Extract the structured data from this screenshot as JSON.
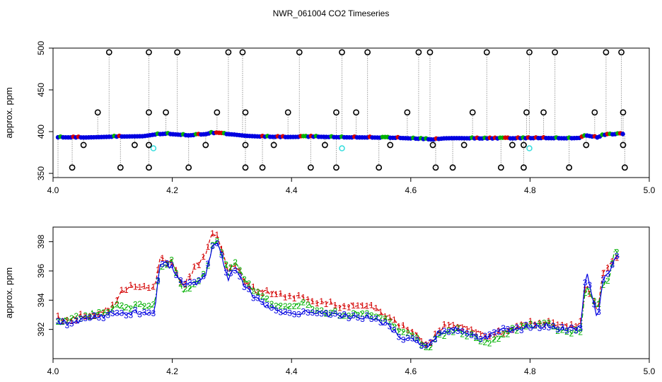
{
  "figure_title": "NWR_061004  CO2 Timeseries",
  "colors": {
    "black": "#000000",
    "red": "#d40000",
    "green": "#00b000",
    "blue": "#0000e0",
    "cyan": "#33dddd",
    "grey": "#9a9a9a"
  },
  "chart_data": [
    {
      "type": "scatter",
      "title": "",
      "ylabel": "approx. ppm",
      "xlabel": "",
      "xlim": [
        4.0,
        5.0
      ],
      "ylim": [
        345,
        500
      ],
      "x_ticks": [
        "4.0",
        "4.2",
        "4.4",
        "4.6",
        "4.8",
        "5.0"
      ],
      "y_ticks": [
        "350",
        "400",
        "450",
        "500"
      ],
      "grid": false,
      "legend": "none",
      "baseline_series": {
        "marker": "blue-filled-circles",
        "points": [
          [
            4.0,
            393.2
          ],
          [
            4.05,
            393.0
          ],
          [
            4.1,
            394.0
          ],
          [
            4.15,
            394.5
          ],
          [
            4.17,
            396.5
          ],
          [
            4.19,
            397.5
          ],
          [
            4.2,
            397.0
          ],
          [
            4.23,
            395.5
          ],
          [
            4.26,
            397.0
          ],
          [
            4.27,
            398.5
          ],
          [
            4.29,
            397.5
          ],
          [
            4.31,
            396.5
          ],
          [
            4.33,
            395.0
          ],
          [
            4.36,
            394.0
          ],
          [
            4.4,
            393.5
          ],
          [
            4.45,
            394.0
          ],
          [
            4.5,
            393.2
          ],
          [
            4.55,
            393.0
          ],
          [
            4.6,
            392.5
          ],
          [
            4.65,
            391.0
          ],
          [
            4.66,
            390.5
          ],
          [
            4.68,
            392.0
          ],
          [
            4.7,
            392.2
          ],
          [
            4.75,
            391.8
          ],
          [
            4.8,
            392.0
          ],
          [
            4.85,
            392.3
          ],
          [
            4.9,
            392.0
          ],
          [
            4.92,
            392.5
          ],
          [
            4.93,
            395.5
          ],
          [
            4.95,
            393.0
          ],
          [
            4.96,
            396.0
          ],
          [
            4.98,
            397.0
          ],
          [
            4.99,
            397.2
          ]
        ]
      },
      "spikes_high": [
        4.09,
        4.16,
        4.21,
        4.3,
        4.325,
        4.425,
        4.5,
        4.545,
        4.635,
        4.655,
        4.755,
        4.83,
        4.875,
        4.965,
        4.992
      ],
      "spikes_mid": [
        4.07,
        4.16,
        4.19,
        4.28,
        4.33,
        4.405,
        4.49,
        4.525,
        4.615,
        4.73,
        4.825,
        4.855,
        4.945,
        4.995
      ],
      "spikes_low": [
        4.025,
        4.11,
        4.16,
        4.23,
        4.33,
        4.36,
        4.445,
        4.49,
        4.565,
        4.665,
        4.695,
        4.78,
        4.82,
        4.9,
        4.998
      ],
      "dips": [
        4.045,
        4.135,
        4.16,
        4.26,
        4.33,
        4.38,
        4.47,
        4.585,
        4.66,
        4.715,
        4.8,
        4.82,
        4.93,
        4.995
      ],
      "spike_levels": {
        "high": 495,
        "mid": 423,
        "low": 357,
        "dip": 384
      },
      "cyan_points": [
        [
          4.168,
          380
        ],
        [
          4.5,
          380
        ],
        [
          4.83,
          380
        ]
      ]
    },
    {
      "type": "line",
      "title": "",
      "ylabel": "approx. ppm",
      "xlabel": "",
      "xlim": [
        4.0,
        5.0
      ],
      "ylim": [
        390.0,
        399.0
      ],
      "x_ticks": [
        "4.0",
        "4.2",
        "4.4",
        "4.6",
        "4.8",
        "5.0"
      ],
      "y_ticks": [
        "392",
        "394",
        "396",
        "398"
      ],
      "grid": false,
      "legend": "none",
      "series": [
        {
          "name": "1",
          "color": "red",
          "style": "dashed",
          "points": [
            [
              4.0,
              392.8
            ],
            [
              4.02,
              392.6
            ],
            [
              4.04,
              392.9
            ],
            [
              4.06,
              393.0
            ],
            [
              4.08,
              393.2
            ],
            [
              4.1,
              393.8
            ],
            [
              4.11,
              394.5
            ],
            [
              4.13,
              394.9
            ],
            [
              4.15,
              394.8
            ],
            [
              4.17,
              394.9
            ],
            [
              4.18,
              396.8
            ],
            [
              4.2,
              396.5
            ],
            [
              4.22,
              395.0
            ],
            [
              4.24,
              396.2
            ],
            [
              4.26,
              397.0
            ],
            [
              4.27,
              398.7
            ],
            [
              4.28,
              398.5
            ],
            [
              4.3,
              396.0
            ],
            [
              4.31,
              396.5
            ],
            [
              4.33,
              395.2
            ],
            [
              4.35,
              394.6
            ],
            [
              4.38,
              394.5
            ],
            [
              4.4,
              394.3
            ],
            [
              4.42,
              394.2
            ],
            [
              4.45,
              394.0
            ],
            [
              4.48,
              393.8
            ],
            [
              4.5,
              393.6
            ],
            [
              4.53,
              393.7
            ],
            [
              4.56,
              393.5
            ],
            [
              4.6,
              392.3
            ],
            [
              4.62,
              392.0
            ],
            [
              4.65,
              391.0
            ],
            [
              4.68,
              392.2
            ],
            [
              4.7,
              392.3
            ],
            [
              4.73,
              392.0
            ],
            [
              4.75,
              391.6
            ],
            [
              4.78,
              391.8
            ],
            [
              4.8,
              392.1
            ],
            [
              4.83,
              392.4
            ],
            [
              4.86,
              392.5
            ],
            [
              4.88,
              392.3
            ],
            [
              4.9,
              392.2
            ],
            [
              4.92,
              392.5
            ],
            [
              4.93,
              395.2
            ],
            [
              4.95,
              393.2
            ],
            [
              4.96,
              396.0
            ],
            [
              4.97,
              396.3
            ],
            [
              4.98,
              396.8
            ],
            [
              4.99,
              397.2
            ]
          ]
        },
        {
          "name": "2",
          "color": "green",
          "style": "dashdot",
          "points": [
            [
              4.0,
              392.7
            ],
            [
              4.02,
              392.7
            ],
            [
              4.04,
              392.8
            ],
            [
              4.06,
              393.1
            ],
            [
              4.08,
              393.0
            ],
            [
              4.1,
              393.6
            ],
            [
              4.12,
              393.4
            ],
            [
              4.14,
              393.6
            ],
            [
              4.16,
              393.5
            ],
            [
              4.17,
              393.8
            ],
            [
              4.18,
              396.4
            ],
            [
              4.2,
              396.7
            ],
            [
              4.22,
              394.6
            ],
            [
              4.24,
              395.0
            ],
            [
              4.26,
              395.8
            ],
            [
              4.27,
              397.5
            ],
            [
              4.28,
              398.2
            ],
            [
              4.3,
              395.8
            ],
            [
              4.31,
              396.8
            ],
            [
              4.33,
              395.2
            ],
            [
              4.36,
              394.2
            ],
            [
              4.38,
              393.7
            ],
            [
              4.4,
              393.5
            ],
            [
              4.42,
              393.8
            ],
            [
              4.44,
              393.7
            ],
            [
              4.46,
              393.3
            ],
            [
              4.48,
              393.2
            ],
            [
              4.5,
              393.0
            ],
            [
              4.55,
              393.1
            ],
            [
              4.58,
              392.5
            ],
            [
              4.6,
              392.0
            ],
            [
              4.63,
              391.5
            ],
            [
              4.65,
              390.6
            ],
            [
              4.67,
              391.5
            ],
            [
              4.7,
              392.0
            ],
            [
              4.72,
              391.7
            ],
            [
              4.74,
              391.3
            ],
            [
              4.76,
              391.2
            ],
            [
              4.78,
              391.6
            ],
            [
              4.8,
              392.0
            ],
            [
              4.83,
              392.2
            ],
            [
              4.86,
              392.4
            ],
            [
              4.88,
              392.0
            ],
            [
              4.9,
              391.8
            ],
            [
              4.92,
              391.8
            ],
            [
              4.93,
              395.0
            ],
            [
              4.95,
              393.5
            ],
            [
              4.96,
              395.2
            ],
            [
              4.97,
              395.4
            ],
            [
              4.98,
              397.4
            ],
            [
              4.99,
              397.0
            ]
          ]
        },
        {
          "name": "3",
          "color": "blue",
          "style": "solid",
          "points": [
            [
              4.0,
              392.5
            ],
            [
              4.02,
              392.4
            ],
            [
              4.04,
              392.6
            ],
            [
              4.06,
              392.8
            ],
            [
              4.08,
              392.9
            ],
            [
              4.1,
              393.2
            ],
            [
              4.12,
              393.0
            ],
            [
              4.14,
              393.2
            ],
            [
              4.16,
              393.1
            ],
            [
              4.17,
              393.3
            ],
            [
              4.18,
              396.6
            ],
            [
              4.2,
              396.3
            ],
            [
              4.22,
              395.2
            ],
            [
              4.24,
              395.1
            ],
            [
              4.26,
              395.6
            ],
            [
              4.27,
              397.5
            ],
            [
              4.28,
              398.0
            ],
            [
              4.3,
              395.3
            ],
            [
              4.31,
              396.2
            ],
            [
              4.33,
              394.8
            ],
            [
              4.36,
              393.7
            ],
            [
              4.38,
              393.4
            ],
            [
              4.4,
              393.1
            ],
            [
              4.42,
              393.2
            ],
            [
              4.45,
              393.1
            ],
            [
              4.48,
              393.0
            ],
            [
              4.5,
              392.9
            ],
            [
              4.55,
              392.8
            ],
            [
              4.58,
              392.3
            ],
            [
              4.6,
              391.5
            ],
            [
              4.63,
              391.3
            ],
            [
              4.65,
              390.7
            ],
            [
              4.67,
              391.8
            ],
            [
              4.7,
              392.1
            ],
            [
              4.72,
              391.7
            ],
            [
              4.75,
              391.4
            ],
            [
              4.78,
              391.9
            ],
            [
              4.8,
              392.0
            ],
            [
              4.83,
              392.2
            ],
            [
              4.86,
              392.3
            ],
            [
              4.88,
              392.1
            ],
            [
              4.9,
              392.0
            ],
            [
              4.92,
              392.1
            ],
            [
              4.93,
              396.0
            ],
            [
              4.95,
              392.6
            ],
            [
              4.96,
              395.5
            ],
            [
              4.97,
              395.7
            ],
            [
              4.98,
              396.8
            ],
            [
              4.99,
              397.0
            ]
          ]
        }
      ]
    }
  ]
}
